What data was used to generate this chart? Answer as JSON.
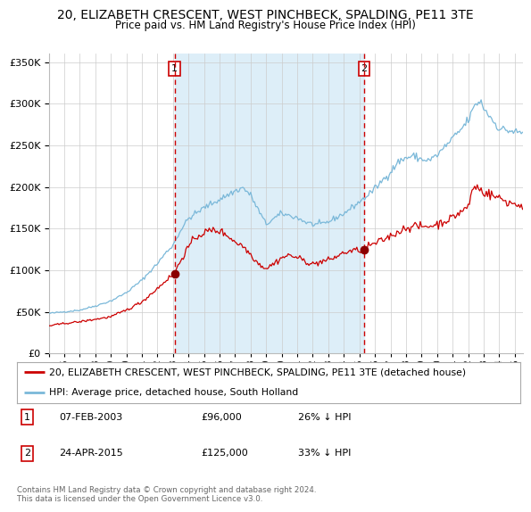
{
  "title": "20, ELIZABETH CRESCENT, WEST PINCHBECK, SPALDING, PE11 3TE",
  "subtitle": "Price paid vs. HM Land Registry's House Price Index (HPI)",
  "legend_line1": "20, ELIZABETH CRESCENT, WEST PINCHBECK, SPALDING, PE11 3TE (detached house)",
  "legend_line2": "HPI: Average price, detached house, South Holland",
  "transaction1_date": "07-FEB-2003",
  "transaction1_price": "£96,000",
  "transaction1_hpi": "26% ↓ HPI",
  "transaction1_year": 2003.1,
  "transaction1_value": 96000,
  "transaction2_date": "24-APR-2015",
  "transaction2_price": "£125,000",
  "transaction2_hpi": "33% ↓ HPI",
  "transaction2_year": 2015.3,
  "transaction2_value": 125000,
  "hpi_color": "#7ab8d9",
  "property_color": "#cc0000",
  "marker_color": "#8b0000",
  "vline_color": "#cc0000",
  "background_color": "#ffffff",
  "plot_bg_color": "#ffffff",
  "shade_color": "#ddeef8",
  "grid_color": "#cccccc",
  "ylim": [
    0,
    360000
  ],
  "yticks": [
    0,
    50000,
    100000,
    150000,
    200000,
    250000,
    300000,
    350000
  ],
  "xstart": 1995.0,
  "xend": 2025.5,
  "footnote": "Contains HM Land Registry data © Crown copyright and database right 2024.\nThis data is licensed under the Open Government Licence v3.0."
}
